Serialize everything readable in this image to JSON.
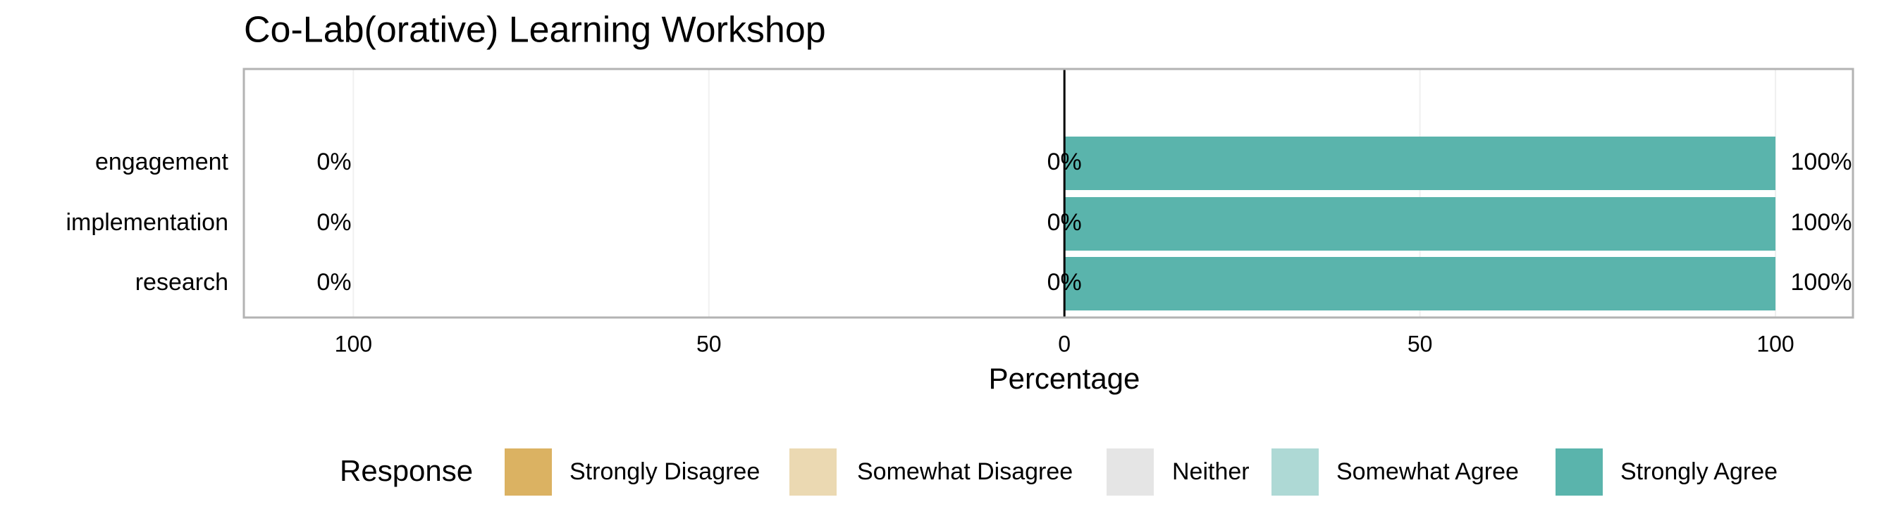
{
  "chart_data": {
    "type": "likert",
    "title": "Co-Lab(orative) Learning Workshop",
    "categories": [
      "engagement",
      "implementation",
      "research"
    ],
    "series": [
      {
        "name": "Strongly Disagree",
        "color": "#dbb262",
        "side": "low",
        "values": [
          0,
          0,
          0
        ]
      },
      {
        "name": "Somewhat Disagree",
        "color": "#ebd9b2",
        "side": "low",
        "values": [
          0,
          0,
          0
        ]
      },
      {
        "name": "Neither",
        "color": "#e5e5e5",
        "side": "neutral",
        "values": [
          0,
          0,
          0
        ]
      },
      {
        "name": "Somewhat Agree",
        "color": "#aed9d5",
        "side": "high",
        "values": [
          0,
          0,
          0
        ]
      },
      {
        "name": "Strongly Agree",
        "color": "#5ab4ac",
        "side": "high",
        "values": [
          100,
          100,
          100
        ]
      }
    ],
    "low_percent": {
      "values": [
        0,
        0,
        0
      ],
      "value_labels": [
        "0%",
        "0%",
        "0%"
      ]
    },
    "neutral_percent": {
      "values": [
        0,
        0,
        0
      ],
      "value_labels": [
        "0%",
        "0%",
        "0%"
      ]
    },
    "high_percent": {
      "values": [
        100,
        100,
        100
      ],
      "value_labels": [
        "100%",
        "100%",
        "100%"
      ]
    },
    "x_label": "Percentage",
    "legend_title": "Response",
    "xlim": [
      -115.4,
      110.9
    ],
    "xticks": [
      {
        "value": -100,
        "label": "100"
      },
      {
        "value": -50,
        "label": "50"
      },
      0,
      50,
      100
    ],
    "grid": true,
    "legend_position": "bottom"
  }
}
